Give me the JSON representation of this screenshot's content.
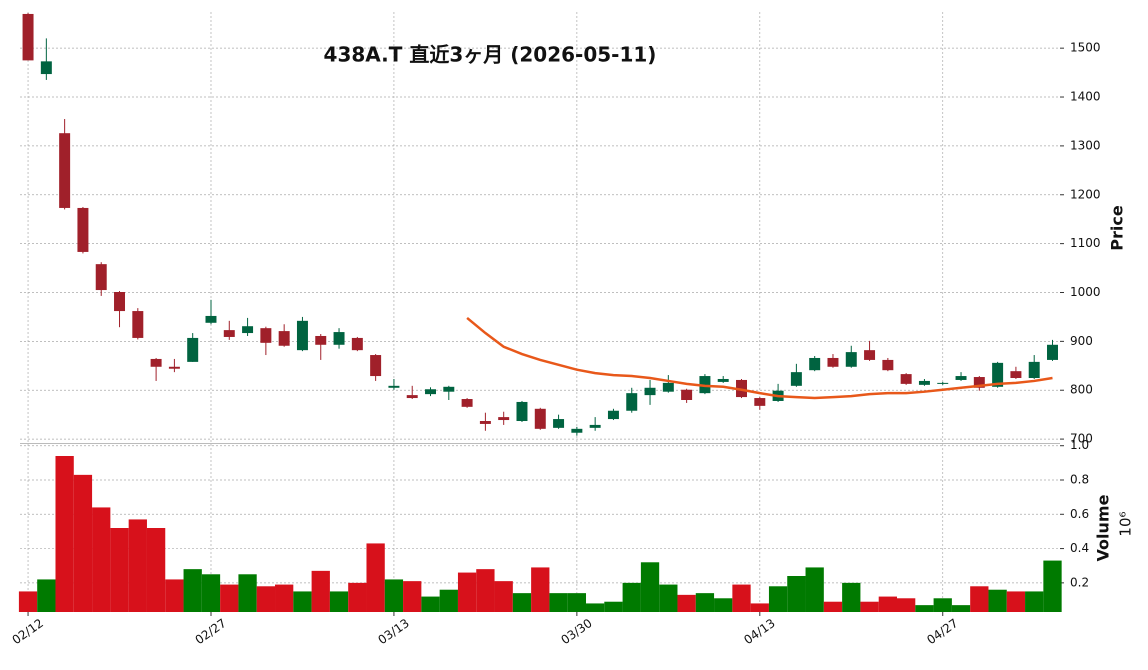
{
  "chart_data": {
    "type": "candlestick",
    "title": "438A.T 直近3ヶ月 (2026-05-11)",
    "categories": [
      "02/12",
      null,
      null,
      null,
      null,
      null,
      null,
      null,
      null,
      null,
      "02/27",
      null,
      null,
      null,
      null,
      null,
      null,
      null,
      null,
      null,
      "03/13",
      null,
      null,
      null,
      null,
      null,
      null,
      null,
      null,
      null,
      "03/30",
      null,
      null,
      null,
      null,
      null,
      null,
      null,
      null,
      null,
      "04/13",
      null,
      null,
      null,
      null,
      null,
      null,
      null,
      null,
      null,
      "04/27",
      null,
      null,
      null,
      null,
      null,
      null
    ],
    "open": [
      1570,
      1447,
      1326,
      1173,
      1058,
      1001,
      962,
      864,
      848,
      858,
      938,
      923,
      917,
      927,
      921,
      882,
      911,
      893,
      907,
      872,
      805,
      790,
      792,
      797,
      782,
      737,
      745,
      737,
      762,
      723,
      713,
      723,
      741,
      758,
      790,
      797,
      801,
      794,
      817,
      821,
      784,
      778,
      809,
      841,
      866,
      848,
      882,
      862,
      833,
      811,
      813,
      821,
      827,
      807,
      839,
      825,
      862
    ],
    "high": [
      1572,
      1520,
      1355,
      1175,
      1062,
      1003,
      968,
      866,
      864,
      917,
      985,
      942,
      948,
      930,
      935,
      950,
      915,
      927,
      909,
      874,
      823,
      809,
      806,
      809,
      784,
      754,
      756,
      778,
      764,
      750,
      725,
      745,
      762,
      805,
      821,
      831,
      803,
      833,
      829,
      823,
      786,
      813,
      854,
      870,
      874,
      891,
      901,
      866,
      835,
      823,
      817,
      837,
      829,
      858,
      848,
      872,
      903
    ],
    "low": [
      1475,
      1435,
      1170,
      1080,
      993,
      929,
      904,
      819,
      837,
      858,
      935,
      903,
      911,
      872,
      889,
      880,
      862,
      885,
      880,
      819,
      801,
      782,
      788,
      780,
      764,
      717,
      729,
      735,
      719,
      721,
      707,
      717,
      739,
      754,
      770,
      795,
      774,
      792,
      815,
      784,
      760,
      776,
      807,
      839,
      846,
      846,
      860,
      839,
      811,
      809,
      811,
      819,
      799,
      805,
      823,
      823,
      860
    ],
    "close": [
      1475,
      1473,
      1173,
      1083,
      1005,
      962,
      907,
      848,
      844,
      907,
      952,
      909,
      931,
      897,
      891,
      942,
      893,
      919,
      882,
      829,
      809,
      784,
      802,
      807,
      766,
      731,
      739,
      776,
      721,
      741,
      721,
      729,
      758,
      794,
      805,
      815,
      780,
      829,
      823,
      786,
      768,
      799,
      837,
      866,
      848,
      878,
      862,
      841,
      813,
      819,
      815,
      829,
      805,
      856,
      825,
      858,
      893
    ],
    "up_color": "#006340",
    "down_color": "#a0202a",
    "ylabel": "Price",
    "ylim": [
      692,
      1574
    ],
    "yticks": [
      700,
      800,
      900,
      1000,
      1100,
      1200,
      1300,
      1400,
      1500
    ],
    "grid": true,
    "moving_average": {
      "color": "#e8581a",
      "values": [
        null,
        null,
        null,
        null,
        null,
        null,
        null,
        null,
        null,
        null,
        null,
        null,
        null,
        null,
        null,
        null,
        null,
        null,
        null,
        null,
        null,
        null,
        null,
        null,
        948,
        917,
        889,
        874,
        862,
        852,
        842,
        835,
        831,
        829,
        825,
        819,
        813,
        809,
        807,
        801,
        794,
        788,
        786,
        784,
        786,
        788,
        792,
        794,
        794,
        797,
        801,
        805,
        809,
        813,
        815,
        819,
        825
      ]
    },
    "volume": {
      "ylabel": "Volume",
      "offset_label": "10⁶",
      "up_color": "#007a00",
      "down_color": "#d7111b",
      "values": [
        0.15,
        0.22,
        0.94,
        0.83,
        0.64,
        0.52,
        0.57,
        0.52,
        0.22,
        0.28,
        0.25,
        0.19,
        0.25,
        0.18,
        0.19,
        0.15,
        0.27,
        0.15,
        0.2,
        0.43,
        0.22,
        0.21,
        0.12,
        0.16,
        0.26,
        0.28,
        0.21,
        0.14,
        0.29,
        0.14,
        0.14,
        0.08,
        0.09,
        0.2,
        0.32,
        0.19,
        0.13,
        0.14,
        0.11,
        0.19,
        0.08,
        0.18,
        0.24,
        0.29,
        0.09,
        0.2,
        0.09,
        0.12,
        0.11,
        0.07,
        0.11,
        0.07,
        0.18,
        0.16,
        0.15,
        0.15,
        0.33
      ],
      "ylim": [
        0.03,
        1.01
      ],
      "yticks": [
        0.2,
        0.4,
        0.6,
        0.8,
        {
          "value": 1,
          "label": "1.0"
        }
      ]
    }
  }
}
